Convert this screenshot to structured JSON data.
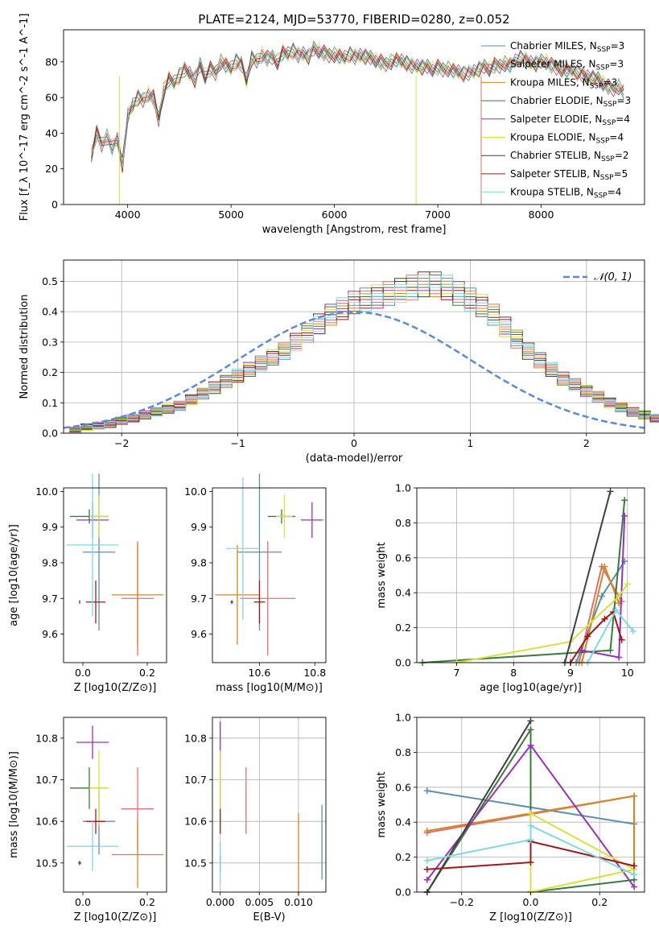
{
  "figure_title": "PLATE=2124, MJD=53770, FIBERID=0280, z=0.052",
  "colors": {
    "chabrier_miles": "#5b8fb0",
    "salpeter_miles": "#e07070",
    "kroupa_miles": "#d08820",
    "chabrier_elodie": "#3a7a3a",
    "salpeter_elodie": "#9a30b8",
    "kroupa_elodie": "#d8e040",
    "chabrier_stelib": "#404040",
    "salpeter_stelib": "#a01818",
    "kroupa_stelib": "#80d8e0",
    "normal_curve": "#5b8ad6"
  },
  "chart_data": [
    {
      "type": "line",
      "title": "PLATE=2124, MJD=53770, FIBERID=0280, z=0.052",
      "xlabel": "wavelength [Angstrom, rest frame]",
      "ylabel": "Flux [f_λ 10^-17 erg cm^-2 s^-1 A^-1]",
      "xlim": [
        3380,
        9000
      ],
      "ylim": [
        0,
        98
      ],
      "xticks": [
        "4000",
        "5000",
        "6000",
        "7000",
        "8000"
      ],
      "yticks": [
        "0",
        "20",
        "40",
        "60",
        "80"
      ],
      "legend_position": "top-right",
      "spectrum_x": [
        3650,
        3700,
        3750,
        3800,
        3850,
        3900,
        3950,
        4000,
        4050,
        4100,
        4150,
        4200,
        4250,
        4300,
        4350,
        4400,
        4450,
        4500,
        4550,
        4600,
        4650,
        4700,
        4750,
        4800,
        4850,
        4900,
        4950,
        5000,
        5050,
        5100,
        5150,
        5200,
        5250,
        5300,
        5350,
        5400,
        5450,
        5500,
        5550,
        5600,
        5650,
        5700,
        5750,
        5800,
        5850,
        5900,
        5950,
        6000,
        6050,
        6100,
        6150,
        6200,
        6250,
        6300,
        6350,
        6400,
        6450,
        6500,
        6550,
        6600,
        6650,
        6700,
        6750,
        6800,
        6850,
        6900,
        6950,
        7000,
        7050,
        7100,
        7150,
        7200,
        7250,
        7300,
        7350,
        7400,
        7450,
        7500,
        7550,
        7600,
        7650,
        7700,
        7750,
        7800,
        7850,
        7900,
        7950,
        8000,
        8050,
        8100,
        8150,
        8200,
        8250,
        8300,
        8350,
        8400,
        8450,
        8500,
        8550,
        8600,
        8650,
        8700,
        8750,
        8800
      ],
      "spectrum_y": [
        28,
        40,
        34,
        38,
        32,
        36,
        22,
        50,
        56,
        60,
        58,
        62,
        60,
        48,
        64,
        70,
        68,
        72,
        76,
        74,
        70,
        78,
        72,
        76,
        74,
        80,
        78,
        76,
        80,
        79,
        70,
        82,
        80,
        84,
        82,
        83,
        80,
        85,
        84,
        86,
        84,
        85,
        83,
        87,
        86,
        85,
        84,
        84,
        83,
        82,
        84,
        83,
        84,
        83,
        82,
        81,
        80,
        79,
        80,
        81,
        80,
        79,
        78,
        78,
        77,
        77,
        76,
        77,
        76,
        76,
        75,
        74,
        73,
        74,
        75,
        76,
        77,
        76,
        78,
        78,
        79,
        78,
        80,
        82,
        81,
        80,
        79,
        80,
        80,
        78,
        77,
        76,
        75,
        75,
        74,
        73,
        72,
        71,
        70,
        68,
        66,
        65,
        66,
        63
      ],
      "series": [
        {
          "name": "Chabrier MILES, N_SSP=3",
          "label_main": "Chabrier MILES, N",
          "label_sub": "SSP",
          "label_tail": "=3"
        },
        {
          "name": "Salpeter MILES, N_SSP=3",
          "label_main": "Salpeter MILES, N",
          "label_sub": "SSP",
          "label_tail": "=3"
        },
        {
          "name": "Kroupa MILES, N_SSP=3",
          "label_main": "Kroupa MILES, N",
          "label_sub": "SSP",
          "label_tail": "=3"
        },
        {
          "name": "Chabrier ELODIE, N_SSP=3",
          "label_main": "Chabrier ELODIE, N",
          "label_sub": "SSP",
          "label_tail": "=3"
        },
        {
          "name": "Salpeter ELODIE, N_SSP=4",
          "label_main": "Salpeter ELODIE, N",
          "label_sub": "SSP",
          "label_tail": "=4"
        },
        {
          "name": "Kroupa ELODIE, N_SSP=4",
          "label_main": "Kroupa ELODIE, N",
          "label_sub": "SSP",
          "label_tail": "=4"
        },
        {
          "name": "Chabrier STELIB, N_SSP=2",
          "label_main": "Chabrier STELIB, N",
          "label_sub": "SSP",
          "label_tail": "=2"
        },
        {
          "name": "Salpeter STELIB, N_SSP=5",
          "label_main": "Salpeter STELIB, N",
          "label_sub": "SSP",
          "label_tail": "=5"
        },
        {
          "name": "Kroupa STELIB, N_SSP=4",
          "label_main": "Kroupa STELIB, N",
          "label_sub": "SSP",
          "label_tail": "=4"
        }
      ]
    },
    {
      "type": "histogram",
      "xlabel": "(data-model)/error",
      "ylabel": "Normed distribution",
      "xlim": [
        -2.5,
        2.5
      ],
      "ylim": [
        0,
        0.57
      ],
      "xticks": [
        "−2",
        "−1",
        "0",
        "1",
        "2"
      ],
      "yticks": [
        "0.0",
        "0.1",
        "0.2",
        "0.3",
        "0.4",
        "0.5"
      ],
      "grid": true,
      "legend_position": "top-right",
      "legend_label": "𝒩(0, 1)",
      "bin_width": 0.1,
      "hist_base": [
        0.01,
        0.02,
        0.025,
        0.03,
        0.04,
        0.05,
        0.06,
        0.07,
        0.08,
        0.09,
        0.11,
        0.13,
        0.15,
        0.17,
        0.19,
        0.21,
        0.23,
        0.25,
        0.27,
        0.3,
        0.33,
        0.36,
        0.39,
        0.41,
        0.43,
        0.44,
        0.45,
        0.46,
        0.47,
        0.48,
        0.49,
        0.49,
        0.48,
        0.46,
        0.44,
        0.42,
        0.39,
        0.35,
        0.31,
        0.27,
        0.24,
        0.21,
        0.18,
        0.16,
        0.14,
        0.12,
        0.1,
        0.085,
        0.07,
        0.06,
        0.05,
        0.04,
        0.035,
        0.03,
        0.025,
        0.02
      ],
      "normal_curve": "N(0,1)"
    },
    {
      "type": "scatter",
      "xlabel": "Z [log10(Z/Z⊙)]",
      "ylabel": "age [log10(age/yr)]",
      "xlim": [
        -0.06,
        0.26
      ],
      "ylim": [
        9.52,
        10.01
      ],
      "xticks": [
        "0.0",
        "0.2"
      ],
      "yticks": [
        "9.6",
        "9.7",
        "9.8",
        "9.9",
        "10.0"
      ],
      "points": [
        {
          "x": 0.05,
          "y": 9.83,
          "xerr": 0.05,
          "yerr": 0.22
        },
        {
          "x": 0.17,
          "y": 9.7,
          "xerr": 0.05,
          "yerr": 0.16
        },
        {
          "x": 0.17,
          "y": 9.71,
          "xerr": 0.08,
          "yerr": 0.14
        },
        {
          "x": 0.02,
          "y": 9.93,
          "xerr": 0.06,
          "yerr": 0.02
        },
        {
          "x": 0.03,
          "y": 9.92,
          "xerr": 0.05,
          "yerr": 0.05
        },
        {
          "x": 0.05,
          "y": 9.93,
          "xerr": 0.03,
          "yerr": 0.06
        },
        {
          "x": -0.01,
          "y": 9.69,
          "xerr": 0.0,
          "yerr": 0.005
        },
        {
          "x": 0.04,
          "y": 9.69,
          "xerr": 0.03,
          "yerr": 0.06
        },
        {
          "x": 0.03,
          "y": 9.85,
          "xerr": 0.08,
          "yerr": 0.2
        }
      ]
    },
    {
      "type": "scatter",
      "xlabel": "mass [log10(M/M⊙)]",
      "ylabel": "",
      "xlim": [
        10.43,
        10.84
      ],
      "ylim": [
        9.52,
        10.01
      ],
      "xticks": [
        "10.6",
        "10.8"
      ],
      "yticks": [
        "9.6",
        "9.7",
        "9.8",
        "9.9",
        "10.0"
      ],
      "points": [
        {
          "x": 10.6,
          "y": 9.83,
          "xerr": 0.08,
          "yerr": 0.22
        },
        {
          "x": 10.63,
          "y": 9.7,
          "xerr": 0.1,
          "yerr": 0.16
        },
        {
          "x": 10.52,
          "y": 9.71,
          "xerr": 0.08,
          "yerr": 0.14
        },
        {
          "x": 10.68,
          "y": 9.93,
          "xerr": 0.05,
          "yerr": 0.02
        },
        {
          "x": 10.79,
          "y": 9.92,
          "xerr": 0.04,
          "yerr": 0.05
        },
        {
          "x": 10.69,
          "y": 9.93,
          "xerr": 0.03,
          "yerr": 0.06
        },
        {
          "x": 10.5,
          "y": 9.69,
          "xerr": 0.005,
          "yerr": 0.005
        },
        {
          "x": 10.6,
          "y": 9.69,
          "xerr": 0.02,
          "yerr": 0.06
        },
        {
          "x": 10.54,
          "y": 9.84,
          "xerr": 0.06,
          "yerr": 0.2
        }
      ]
    },
    {
      "type": "line",
      "xlabel": "age [log10(age/yr)]",
      "ylabel": "mass weight",
      "xlim": [
        6.3,
        10.3
      ],
      "ylim": [
        0,
        1.0
      ],
      "xticks": [
        "7",
        "8",
        "9",
        "10"
      ],
      "yticks": [
        "0.0",
        "0.2",
        "0.4",
        "0.6",
        "0.8",
        "1.0"
      ],
      "grid": true,
      "series": [
        {
          "points": [
            [
              9.1,
              0.0
            ],
            [
              9.55,
              0.38
            ],
            [
              9.95,
              0.58
            ]
          ]
        },
        {
          "points": [
            [
              9.15,
              0.0
            ],
            [
              9.55,
              0.55
            ],
            [
              9.9,
              0.35
            ]
          ]
        },
        {
          "points": [
            [
              9.2,
              0.0
            ],
            [
              9.6,
              0.55
            ],
            [
              9.85,
              0.34
            ]
          ]
        },
        {
          "points": [
            [
              6.4,
              0.0
            ],
            [
              9.7,
              0.07
            ],
            [
              9.95,
              0.93
            ]
          ]
        },
        {
          "points": [
            [
              9.2,
              0.07
            ],
            [
              9.85,
              0.03
            ],
            [
              9.95,
              0.84
            ]
          ]
        },
        {
          "points": [
            [
              7.0,
              0.0
            ],
            [
              9.0,
              0.12
            ],
            [
              9.85,
              0.38
            ],
            [
              10.0,
              0.45
            ]
          ]
        },
        {
          "points": [
            [
              8.9,
              0.0
            ],
            [
              9.7,
              0.98
            ]
          ]
        },
        {
          "points": [
            [
              9.0,
              0.0
            ],
            [
              9.3,
              0.15
            ],
            [
              9.6,
              0.25
            ],
            [
              9.75,
              0.29
            ],
            [
              9.9,
              0.13
            ]
          ]
        },
        {
          "points": [
            [
              9.3,
              0.0
            ],
            [
              9.8,
              0.3
            ],
            [
              10.1,
              0.18
            ]
          ]
        }
      ]
    },
    {
      "type": "scatter",
      "xlabel": "Z [log10(Z/Z⊙)]",
      "ylabel": "mass [log10(M/M⊙)]",
      "xlim": [
        -0.06,
        0.26
      ],
      "ylim": [
        10.43,
        10.85
      ],
      "xticks": [
        "0.0",
        "0.2"
      ],
      "yticks": [
        "10.5",
        "10.6",
        "10.7",
        "10.8"
      ],
      "points": [
        {
          "x": 0.05,
          "y": 10.6,
          "xerr": 0.05,
          "yerr": 0.08
        },
        {
          "x": 0.17,
          "y": 10.63,
          "xerr": 0.05,
          "yerr": 0.1
        },
        {
          "x": 0.17,
          "y": 10.52,
          "xerr": 0.08,
          "yerr": 0.08
        },
        {
          "x": 0.02,
          "y": 10.68,
          "xerr": 0.06,
          "yerr": 0.05
        },
        {
          "x": 0.03,
          "y": 10.79,
          "xerr": 0.05,
          "yerr": 0.04
        },
        {
          "x": 0.05,
          "y": 10.68,
          "xerr": 0.03,
          "yerr": 0.09
        },
        {
          "x": -0.01,
          "y": 10.5,
          "xerr": 0.005,
          "yerr": 0.005
        },
        {
          "x": 0.04,
          "y": 10.6,
          "xerr": 0.03,
          "yerr": 0.03
        },
        {
          "x": 0.03,
          "y": 10.54,
          "xerr": 0.08,
          "yerr": 0.06
        }
      ]
    },
    {
      "type": "errorbar",
      "xlabel": "E(B-V)",
      "ylabel": "",
      "xlim": [
        -0.001,
        0.0135
      ],
      "ylim": [
        10.43,
        10.85
      ],
      "xticks": [
        "0.000",
        "0.005",
        "0.010"
      ],
      "yticks": [
        "10.5",
        "10.6",
        "10.7",
        "10.8"
      ],
      "grid": true,
      "points": [
        {
          "x": 0.013,
          "y": 10.55,
          "yerr": 0.09
        },
        {
          "x": 0.0033,
          "y": 10.65,
          "yerr": 0.08
        },
        {
          "x": 0.01,
          "y": 10.52,
          "yerr": 0.1
        },
        {
          "x": 0.0,
          "y": 10.7,
          "yerr": 0.07
        },
        {
          "x": 0.0,
          "y": 10.79,
          "yerr": 0.05
        },
        {
          "x": 0.0,
          "y": 10.68,
          "yerr": 0.09
        },
        {
          "x": 0.0,
          "y": 10.5,
          "yerr": 0.02
        },
        {
          "x": 0.0,
          "y": 10.6,
          "yerr": 0.03
        },
        {
          "x": 0.0,
          "y": 10.5,
          "yerr": 0.05
        }
      ]
    },
    {
      "type": "line",
      "xlabel": "Z [log10(Z/Z⊙)]",
      "ylabel": "mass weight",
      "xlim": [
        -0.33,
        0.33
      ],
      "ylim": [
        0,
        1.0
      ],
      "xticks": [
        "−0.2",
        "0.0",
        "0.2"
      ],
      "yticks": [
        "0.0",
        "0.2",
        "0.4",
        "0.6",
        "0.8",
        "1.0"
      ],
      "grid": true,
      "series": [
        {
          "points": [
            [
              -0.3,
              0.58
            ],
            [
              0.3,
              0.39
            ]
          ]
        },
        {
          "points": [
            [
              -0.3,
              0.34
            ],
            [
              0.3,
              0.55
            ],
            [
              0.3,
              0.1
            ]
          ]
        },
        {
          "points": [
            [
              -0.3,
              0.35
            ],
            [
              0.3,
              0.55
            ],
            [
              0.3,
              0.1
            ]
          ]
        },
        {
          "points": [
            [
              -0.3,
              0.0
            ],
            [
              0.0,
              0.93
            ],
            [
              0.0,
              0.0
            ],
            [
              0.3,
              0.07
            ]
          ]
        },
        {
          "points": [
            [
              -0.3,
              0.07
            ],
            [
              0.0,
              0.84
            ],
            [
              0.3,
              0.03
            ]
          ]
        },
        {
          "points": [
            [
              0.0,
              0.0
            ],
            [
              0.0,
              0.45
            ],
            [
              0.3,
              0.13
            ],
            [
              0.0,
              0.0
            ]
          ]
        },
        {
          "points": [
            [
              -0.3,
              0.0
            ],
            [
              0.0,
              0.98
            ]
          ]
        },
        {
          "points": [
            [
              -0.3,
              0.13
            ],
            [
              0.0,
              0.17
            ],
            [
              0.0,
              0.29
            ],
            [
              0.3,
              0.15
            ]
          ]
        },
        {
          "points": [
            [
              -0.3,
              0.18
            ],
            [
              0.0,
              0.3
            ],
            [
              0.0,
              0.38
            ],
            [
              0.3,
              0.1
            ]
          ]
        }
      ]
    }
  ]
}
